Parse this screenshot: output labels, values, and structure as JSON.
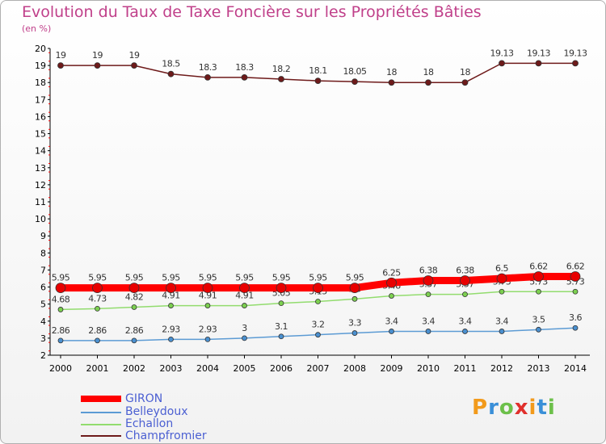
{
  "title": "Evolution du Taux de Taxe Foncière sur les Propriétés Bâties",
  "subtitle": "(en %)",
  "chart_data": {
    "type": "line",
    "x": [
      "2000",
      "2001",
      "2002",
      "2003",
      "2004",
      "2005",
      "2006",
      "2007",
      "2008",
      "2009",
      "2010",
      "2011",
      "2012",
      "2013",
      "2014"
    ],
    "ylim": [
      2,
      20
    ],
    "yticks": [
      2,
      3,
      4,
      5,
      6,
      7,
      8,
      9,
      10,
      11,
      12,
      13,
      14,
      15,
      16,
      17,
      18,
      19,
      20
    ],
    "grid": false,
    "legend_position": "bottom-left",
    "series": [
      {
        "name": "Champfromier",
        "color": "#6e1a1a",
        "width": 1.5,
        "marker": "#6e1a1a",
        "marker_r": 3.5,
        "values": [
          19,
          19,
          19,
          18.5,
          18.3,
          18.3,
          18.2,
          18.1,
          18.05,
          18,
          18,
          18,
          19.13,
          19.13,
          19.13
        ],
        "labels": [
          "19",
          "19",
          "19",
          "18.5",
          "18.3",
          "18.3",
          "18.2",
          "18.1",
          "18.05",
          "18",
          "18",
          "18",
          "19.13",
          "19.13",
          "19.13"
        ]
      },
      {
        "name": "Echallon",
        "color": "#92dc6e",
        "width": 1.5,
        "marker": "#7cd050",
        "marker_r": 3,
        "values": [
          4.68,
          4.73,
          4.82,
          4.91,
          4.91,
          4.91,
          5.05,
          5.15,
          5.3,
          5.48,
          5.57,
          5.57,
          5.73,
          5.73,
          5.73
        ],
        "labels": [
          "4.68",
          "4.73",
          "4.82",
          "4.91",
          "4.91",
          "4.91",
          "5.05",
          "5.15",
          "5.3",
          "5.48",
          "5.57",
          "5.57",
          "5.73",
          "5.73",
          "5.73"
        ]
      },
      {
        "name": "Belleydoux",
        "color": "#5c9bd4",
        "width": 1.5,
        "marker": "#4a90d0",
        "marker_r": 3,
        "values": [
          2.86,
          2.86,
          2.86,
          2.93,
          2.93,
          3,
          3.1,
          3.2,
          3.3,
          3.4,
          3.4,
          3.4,
          3.4,
          3.5,
          3.6
        ],
        "labels": [
          "2.86",
          "2.86",
          "2.86",
          "2.93",
          "2.93",
          "3",
          "3.1",
          "3.2",
          "3.3",
          "3.4",
          "3.4",
          "3.4",
          "3.4",
          "3.5",
          "3.6"
        ]
      },
      {
        "name": "GIRON",
        "color": "#ff0000",
        "width": 9,
        "marker": "#e80000",
        "marker_r": 6,
        "values": [
          5.95,
          5.95,
          5.95,
          5.95,
          5.95,
          5.95,
          5.95,
          5.95,
          5.95,
          6.25,
          6.38,
          6.38,
          6.5,
          6.62,
          6.62
        ],
        "labels": [
          "5.95",
          "5.95",
          "5.95",
          "5.95",
          "5.95",
          "5.95",
          "5.95",
          "5.95",
          "5.95",
          "6.25",
          "6.38",
          "6.38",
          "6.5",
          "6.62",
          "6.62"
        ]
      }
    ],
    "legend": [
      "GIRON",
      "Belleydoux",
      "Echallon",
      "Champfromier"
    ]
  },
  "legend_colors": {
    "GIRON": "#ff0000",
    "Belleydoux": "#5c9bd4",
    "Echallon": "#92dc6e",
    "Champfromier": "#6e1a1a"
  },
  "brand": {
    "letters": [
      "P",
      "r",
      "o",
      "x",
      "i",
      "t",
      "i"
    ],
    "colors": [
      "#f29a1b",
      "#3a8fd8",
      "#6cc04a",
      "#e0302c",
      "#f29a1b",
      "#3a8fd8",
      "#6cc04a"
    ]
  }
}
